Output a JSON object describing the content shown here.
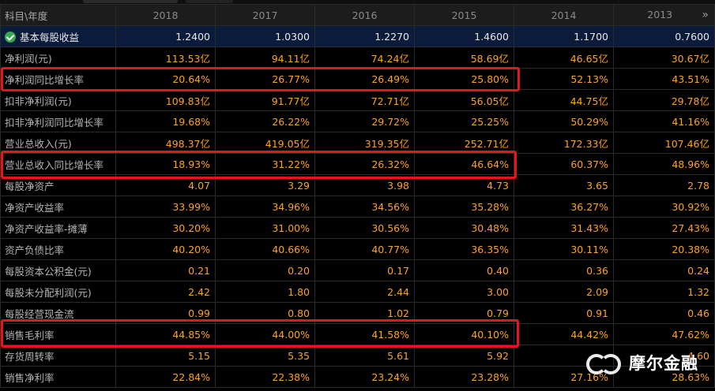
{
  "header": {
    "corner_label": "科目\\年度",
    "years": [
      "2018",
      "2017",
      "2016",
      "2015",
      "2014",
      "2013"
    ],
    "more_icon": "double-chevron-right-icon"
  },
  "rows": [
    {
      "label": "基本每股收益",
      "values": [
        "1.2400",
        "1.0300",
        "1.2270",
        "1.4600",
        "1.1700",
        "0.7600"
      ],
      "selected": true,
      "icon": "check-circle-icon"
    },
    {
      "label": "净利润(元)",
      "values": [
        "113.53亿",
        "94.11亿",
        "74.24亿",
        "58.69亿",
        "46.65亿",
        "30.67亿"
      ]
    },
    {
      "label": "净利润同比增长率",
      "values": [
        "20.64%",
        "26.77%",
        "26.49%",
        "25.80%",
        "52.13%",
        "43.51%"
      ],
      "highlighted": true
    },
    {
      "label": "扣非净利润(元)",
      "values": [
        "109.83亿",
        "91.77亿",
        "72.71亿",
        "56.05亿",
        "44.75亿",
        "29.78亿"
      ]
    },
    {
      "label": "扣非净利润同比增长率",
      "values": [
        "19.68%",
        "26.22%",
        "29.72%",
        "25.25%",
        "50.29%",
        "41.16%"
      ]
    },
    {
      "label": "营业总收入(元)",
      "values": [
        "498.37亿",
        "419.05亿",
        "319.35亿",
        "252.71亿",
        "172.33亿",
        "107.46亿"
      ]
    },
    {
      "label": "营业总收入同比增长率",
      "values": [
        "18.93%",
        "31.22%",
        "26.32%",
        "46.64%",
        "60.37%",
        "48.96%"
      ],
      "highlighted": true
    },
    {
      "label": "每股净资产",
      "values": [
        "4.07",
        "3.29",
        "3.98",
        "4.73",
        "3.65",
        "2.78"
      ]
    },
    {
      "label": "净资产收益率",
      "values": [
        "33.99%",
        "34.96%",
        "34.56%",
        "35.28%",
        "36.27%",
        "30.92%"
      ]
    },
    {
      "label": "净资产收益率-摊薄",
      "values": [
        "30.20%",
        "31.00%",
        "30.56%",
        "30.48%",
        "31.43%",
        "27.43%"
      ]
    },
    {
      "label": "资产负债比率",
      "values": [
        "40.20%",
        "40.66%",
        "40.77%",
        "36.35%",
        "30.11%",
        "20.38%"
      ]
    },
    {
      "label": "每股资本公积金(元)",
      "values": [
        "0.21",
        "0.20",
        "0.17",
        "0.40",
        "0.36",
        "0.24"
      ]
    },
    {
      "label": "每股未分配利润(元)",
      "values": [
        "2.42",
        "1.80",
        "2.44",
        "3.00",
        "2.09",
        "1.32"
      ]
    },
    {
      "label": "每股经营现金流",
      "values": [
        "0.99",
        "0.80",
        "1.02",
        "0.79",
        "0.91",
        "0.46"
      ]
    },
    {
      "label": "销售毛利率",
      "values": [
        "44.85%",
        "44.00%",
        "41.58%",
        "40.10%",
        "44.42%",
        "47.62%"
      ],
      "highlighted": true
    },
    {
      "label": "存货周转率",
      "values": [
        "5.15",
        "5.35",
        "5.61",
        "5.92",
        "",
        "4.60"
      ]
    },
    {
      "label": "销售净利率",
      "values": [
        "22.84%",
        "22.38%",
        "23.24%",
        "23.28%",
        "27.16%",
        "28.63%"
      ]
    }
  ],
  "watermark": {
    "text": "摩尔金融",
    "icon": "moer-logo-icon"
  },
  "colors": {
    "value_text": "#ffa21e",
    "highlight_border": "#e8141d",
    "selected_row": "#0b1b3c",
    "check": "#34a853"
  }
}
